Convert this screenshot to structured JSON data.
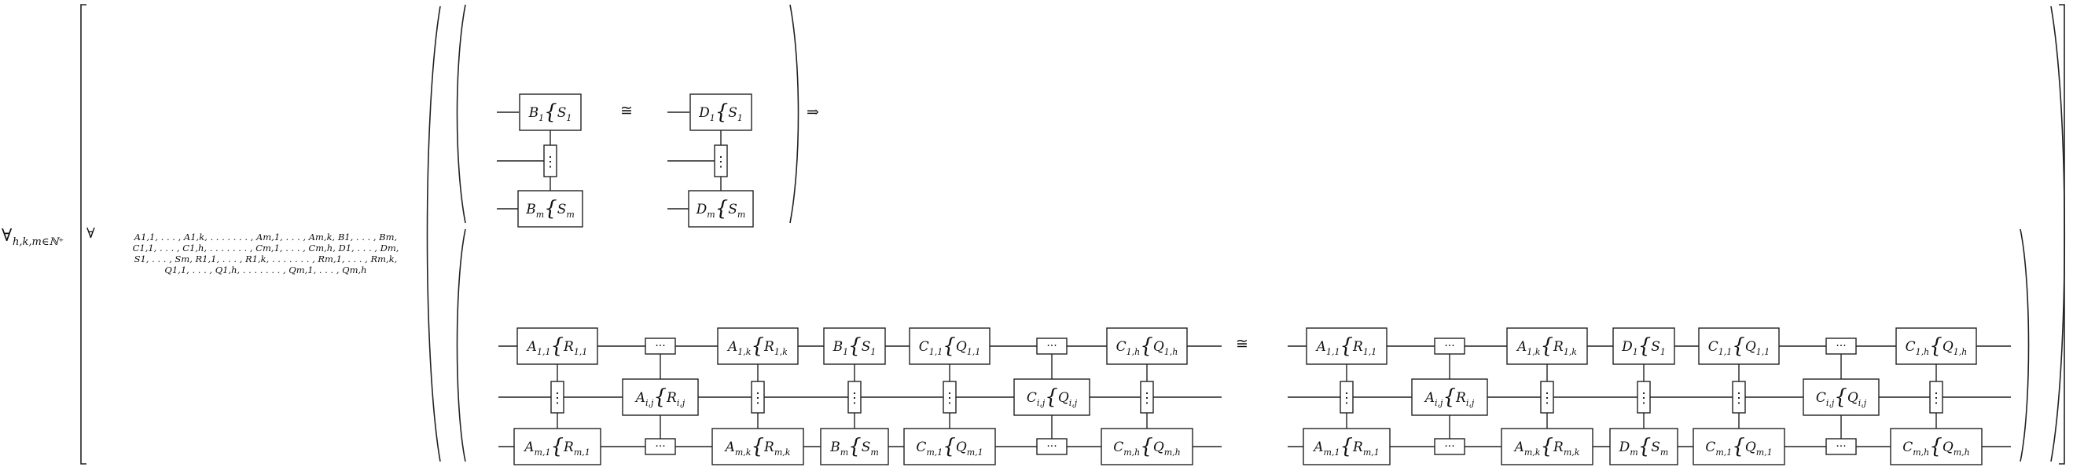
{
  "quantifier": {
    "symbol": "∀",
    "sub": "h,k,m∈ℕ⁺"
  },
  "inner_forall": {
    "symbol": "∀",
    "lines": [
      "A1,1, . . . , A1,k, . . . . . . . , Am,1, . . . , Am,k, B1, . . . , Bm,",
      "C1,1, . . . , C1,h, . . . . . . . , Cm,1, . . . , Cm,h, D1, . . . , Dm,",
      "S1, . . . , Sm, R1,1, . . . , R1,k, . . . . . . . , Rm,1, . . . , Rm,k,",
      "Q1,1, . . . , Q1,h, . . . . . . . , Qm,1, . . . , Qm,h"
    ]
  },
  "symbols": {
    "iso": "≅",
    "implies": "⇒",
    "vdots": "⋮",
    "cdots": "···",
    "brace": "{"
  },
  "premise": {
    "left": [
      [
        "B",
        "1",
        "S",
        "1"
      ],
      [
        "B",
        "m",
        "S",
        "m"
      ]
    ],
    "right": [
      [
        "D",
        "1",
        "S",
        "1"
      ],
      [
        "D",
        "m",
        "S",
        "m"
      ]
    ]
  },
  "conclusion": {
    "left": {
      "top": [
        [
          "A",
          "1,1",
          "R",
          "1,1"
        ],
        [
          "A",
          "1,k",
          "R",
          "1,k"
        ],
        [
          "B",
          "1",
          "S",
          "1"
        ],
        [
          "C",
          "1,1",
          "Q",
          "1,1"
        ],
        [
          "C",
          "1,h",
          "Q",
          "1,h"
        ]
      ],
      "middle": [
        [
          "A",
          "i,j",
          "R",
          "i,j"
        ],
        [
          "C",
          "i,j",
          "Q",
          "i,j"
        ]
      ],
      "bottom": [
        [
          "A",
          "m,1",
          "R",
          "m,1"
        ],
        [
          "A",
          "m,k",
          "R",
          "m,k"
        ],
        [
          "B",
          "m",
          "S",
          "m"
        ],
        [
          "C",
          "m,1",
          "Q",
          "m,1"
        ],
        [
          "C",
          "m,h",
          "Q",
          "m,h"
        ]
      ]
    },
    "right": {
      "top": [
        [
          "A",
          "1,1",
          "R",
          "1,1"
        ],
        [
          "A",
          "1,k",
          "R",
          "1,k"
        ],
        [
          "D",
          "1",
          "S",
          "1"
        ],
        [
          "C",
          "1,1",
          "Q",
          "1,1"
        ],
        [
          "C",
          "1,h",
          "Q",
          "1,h"
        ]
      ],
      "middle": [
        [
          "A",
          "i,j",
          "R",
          "i,j"
        ],
        [
          "C",
          "i,j",
          "Q",
          "i,j"
        ]
      ],
      "bottom": [
        [
          "A",
          "m,1",
          "R",
          "m,1"
        ],
        [
          "A",
          "m,k",
          "R",
          "m,k"
        ],
        [
          "D",
          "m",
          "S",
          "m"
        ],
        [
          "C",
          "m,1",
          "Q",
          "m,1"
        ],
        [
          "C",
          "m,h",
          "Q",
          "m,h"
        ]
      ]
    }
  }
}
